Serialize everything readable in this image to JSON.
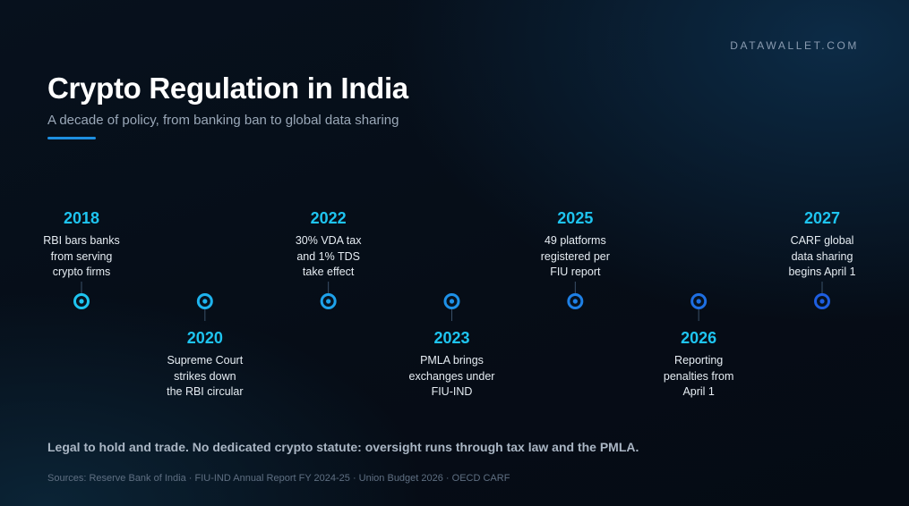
{
  "brand": "DATAWALLET.COM",
  "title": "Crypto Regulation in India",
  "subtitle": "A decade of policy, from banking ban to global data sharing",
  "events": [
    {
      "year": "2018",
      "lines": [
        "RBI bars banks",
        "from serving",
        "crypto firms"
      ],
      "position": "above"
    },
    {
      "year": "2020",
      "lines": [
        "Supreme Court",
        "strikes down",
        "the RBI circular"
      ],
      "position": "below"
    },
    {
      "year": "2022",
      "lines": [
        "30% VDA tax",
        "and 1% TDS",
        "take effect"
      ],
      "position": "above"
    },
    {
      "year": "2023",
      "lines": [
        "PMLA brings",
        "exchanges under",
        "FIU-IND"
      ],
      "position": "below"
    },
    {
      "year": "2025",
      "lines": [
        "49 platforms",
        "registered per",
        "FIU report"
      ],
      "position": "above"
    },
    {
      "year": "2026",
      "lines": [
        "Reporting",
        "penalties from",
        "April 1"
      ],
      "position": "below"
    },
    {
      "year": "2027",
      "lines": [
        "CARF global",
        "data sharing",
        "begins April 1"
      ],
      "position": "above"
    }
  ],
  "footer": "Legal to hold and trade. No dedicated crypto statute: oversight runs through tax law and the PMLA.",
  "sources": "Sources: Reserve Bank of India · FIU-IND Annual Report FY 2024-25 · Union Budget 2026 · OECD CARF",
  "colors": {
    "accent": "#1ec4f0",
    "line_start": "#1ec4f0",
    "line_end": "#1e5ee0",
    "background": "#060d17"
  }
}
